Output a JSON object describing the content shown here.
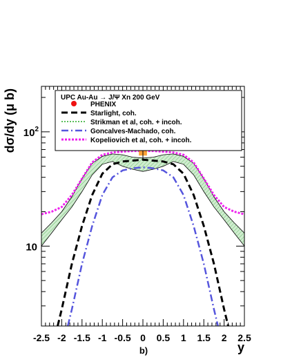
{
  "chart_data": {
    "type": "line",
    "xlabel": "y",
    "ylabel": "dσ/dy (μ b)",
    "caption": "b)",
    "legend_title": "UPC Au-Au → J/Ψ Xn   200 GeV",
    "xlim": [
      -2.5,
      2.5
    ],
    "ylim": [
      2,
      250
    ],
    "yscale": "log",
    "x_ticks": [
      "-2.5",
      "-2",
      "-1.5",
      "-1",
      "-0.5",
      "0",
      "0.5",
      "1",
      "1.5",
      "2",
      "2.5"
    ],
    "y_tick_labels": [
      {
        "value": 10,
        "base": "10",
        "exp": ""
      },
      {
        "value": 100,
        "base": "10",
        "exp": "2"
      }
    ],
    "legend_position": "top",
    "series": [
      {
        "name": "PHENIX",
        "kind": "point",
        "color": "#ee1111",
        "box_color": "#ff9a22",
        "x": 0.0,
        "y": 76,
        "stat_err": [
          58,
          110
        ],
        "syst_box": {
          "x_half": 0.1,
          "y": [
            62,
            92
          ]
        }
      },
      {
        "name": "Starlight, coh.",
        "kind": "line",
        "style": "dash",
        "color": "#000000",
        "x": [
          -2.1,
          -2.0,
          -1.75,
          -1.5,
          -1.25,
          -1.0,
          -0.75,
          -0.5,
          -0.25,
          0,
          0.25,
          0.5,
          0.75,
          1.0,
          1.25,
          1.5,
          1.75,
          2.0,
          2.1
        ],
        "y": [
          2.0,
          2.8,
          7.0,
          15,
          28,
          43,
          52,
          55,
          56,
          57,
          56,
          55,
          52,
          43,
          28,
          15,
          7.0,
          2.8,
          2.0
        ]
      },
      {
        "name": "Strikman et al, coh. + incoh.",
        "kind": "band",
        "color": "#22aa22",
        "fill": "#cfeccf",
        "x": [
          -2.5,
          -2.25,
          -2.0,
          -1.75,
          -1.5,
          -1.25,
          -1.0,
          -0.75,
          -0.5,
          -0.25,
          0,
          0.25,
          0.5,
          0.75,
          1.0,
          1.25,
          1.5,
          1.75,
          2.0,
          2.25,
          2.5
        ],
        "y_low": [
          10,
          13,
          17,
          22,
          30,
          42,
          52,
          55,
          50,
          47,
          45,
          47,
          50,
          55,
          52,
          42,
          30,
          22,
          17,
          13,
          10
        ],
        "y_high": [
          13,
          16,
          20,
          27,
          39,
          53,
          61,
          64,
          63,
          60,
          59,
          60,
          63,
          64,
          61,
          53,
          39,
          27,
          20,
          16,
          13
        ]
      },
      {
        "name": "Goncalves-Machado, coh.",
        "kind": "line",
        "style": "dashdot",
        "color": "#5555dd",
        "x": [
          -1.85,
          -1.75,
          -1.5,
          -1.25,
          -1.0,
          -0.75,
          -0.5,
          -0.25,
          0,
          0.25,
          0.5,
          0.75,
          1.0,
          1.25,
          1.5,
          1.75,
          1.85
        ],
        "y": [
          2.0,
          2.8,
          7.0,
          15,
          28,
          40,
          46,
          48,
          49,
          48,
          46,
          40,
          28,
          15,
          7.0,
          2.8,
          2.0
        ]
      },
      {
        "name": "Kopeliovich et al, coh. + incoh.",
        "kind": "line",
        "style": "dot",
        "color": "#ee22ee",
        "x": [
          -2.5,
          -2.25,
          -2.0,
          -1.75,
          -1.5,
          -1.25,
          -1.0,
          -0.75,
          -0.5,
          -0.25,
          0,
          0.25,
          0.5,
          0.75,
          1.0,
          1.25,
          1.5,
          1.75,
          2.0,
          2.25,
          2.5
        ],
        "y": [
          19,
          20,
          22,
          28,
          39,
          54,
          63,
          66,
          67,
          68,
          68,
          68,
          67,
          66,
          63,
          54,
          39,
          28,
          22,
          20,
          19
        ]
      }
    ]
  }
}
